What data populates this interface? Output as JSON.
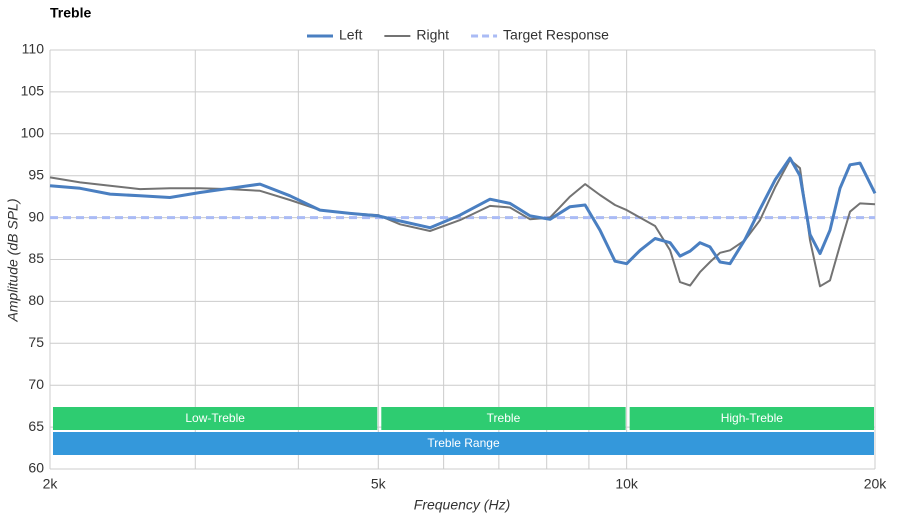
{
  "chart_data": {
    "type": "line",
    "title": "Treble",
    "x_label": "Frequency (Hz)",
    "y_label": "Amplitude (dB SPL)",
    "x_scale": "log",
    "grid": true,
    "legend": "top",
    "xlim": [
      2000,
      20000
    ],
    "xticks": [
      {
        "value": 2000,
        "label": "2k"
      },
      {
        "value": 5000,
        "label": "5k"
      },
      {
        "value": 10000,
        "label": "10k"
      },
      {
        "value": 20000,
        "label": "20k"
      }
    ],
    "xminor": [
      3000,
      4000,
      6000,
      7000,
      8000,
      9000
    ],
    "ylim": [
      60,
      110
    ],
    "yticks": [
      60,
      65,
      70,
      75,
      80,
      85,
      90,
      95,
      100,
      105,
      110
    ],
    "x": [
      2000,
      2175,
      2365,
      2571,
      2795,
      3040,
      3305,
      3594,
      3908,
      4249,
      4620,
      5000,
      5313,
      5776,
      6281,
      6830,
      7222,
      7637,
      8075,
      8538,
      8904,
      9283,
      9680,
      10000,
      10382,
      10825,
      11288,
      11607,
      11936,
      12273,
      12619,
      12976,
      13344,
      13915,
      14509,
      15133,
      15777,
      16222,
      16681,
      17154,
      17640,
      18139,
      18653,
      19180,
      20000
    ],
    "series": [
      {
        "name": "Left",
        "color": "#4a7fc1",
        "width": 3,
        "dash": false,
        "values": [
          93.8,
          93.5,
          92.8,
          92.6,
          92.4,
          93.0,
          93.5,
          94.0,
          92.6,
          90.9,
          90.5,
          90.2,
          89.6,
          88.8,
          90.3,
          92.2,
          91.7,
          90.2,
          89.8,
          91.3,
          91.5,
          88.5,
          84.8,
          84.5,
          86.1,
          87.5,
          87.0,
          85.4,
          86.0,
          87.0,
          86.5,
          84.7,
          84.5,
          87.4,
          91.0,
          94.5,
          97.1,
          95.0,
          88.0,
          85.7,
          88.5,
          93.5,
          96.3,
          96.5,
          92.9
        ]
      },
      {
        "name": "Right",
        "color": "#737373",
        "width": 2,
        "dash": false,
        "values": [
          94.8,
          94.2,
          93.8,
          93.4,
          93.5,
          93.5,
          93.4,
          93.2,
          92.1,
          90.9,
          90.5,
          90.3,
          89.2,
          88.4,
          89.7,
          91.4,
          91.2,
          89.8,
          90.0,
          92.5,
          94.0,
          92.7,
          91.5,
          90.9,
          90.0,
          89.0,
          86.1,
          82.3,
          81.9,
          83.5,
          84.7,
          85.8,
          86.1,
          87.3,
          89.7,
          93.6,
          96.9,
          95.9,
          87.3,
          81.8,
          82.5,
          86.7,
          90.7,
          91.7,
          91.6
        ]
      },
      {
        "name": "Target Response",
        "color": "#aabbf5",
        "width": 3,
        "dash": true,
        "values": [
          90,
          90,
          90,
          90,
          90,
          90,
          90,
          90,
          90,
          90,
          90,
          90,
          90,
          90,
          90,
          90,
          90,
          90,
          90,
          90,
          90,
          90,
          90,
          90,
          90,
          90,
          90,
          90,
          90,
          90,
          90,
          90,
          90,
          90,
          90,
          90,
          90,
          90,
          90,
          90,
          90,
          90,
          90,
          90,
          90
        ]
      }
    ],
    "bands": [
      {
        "label": "Low-Treble",
        "from": 2000,
        "to": 5000,
        "color": "#2ecc71",
        "row": 0
      },
      {
        "label": "Treble",
        "from": 5000,
        "to": 10000,
        "color": "#2ecc71",
        "row": 0
      },
      {
        "label": "High-Treble",
        "from": 10000,
        "to": 20000,
        "color": "#2ecc71",
        "row": 0
      },
      {
        "label": "Treble Range",
        "from": 2000,
        "to": 20000,
        "color": "#3498db",
        "row": 1
      }
    ]
  }
}
